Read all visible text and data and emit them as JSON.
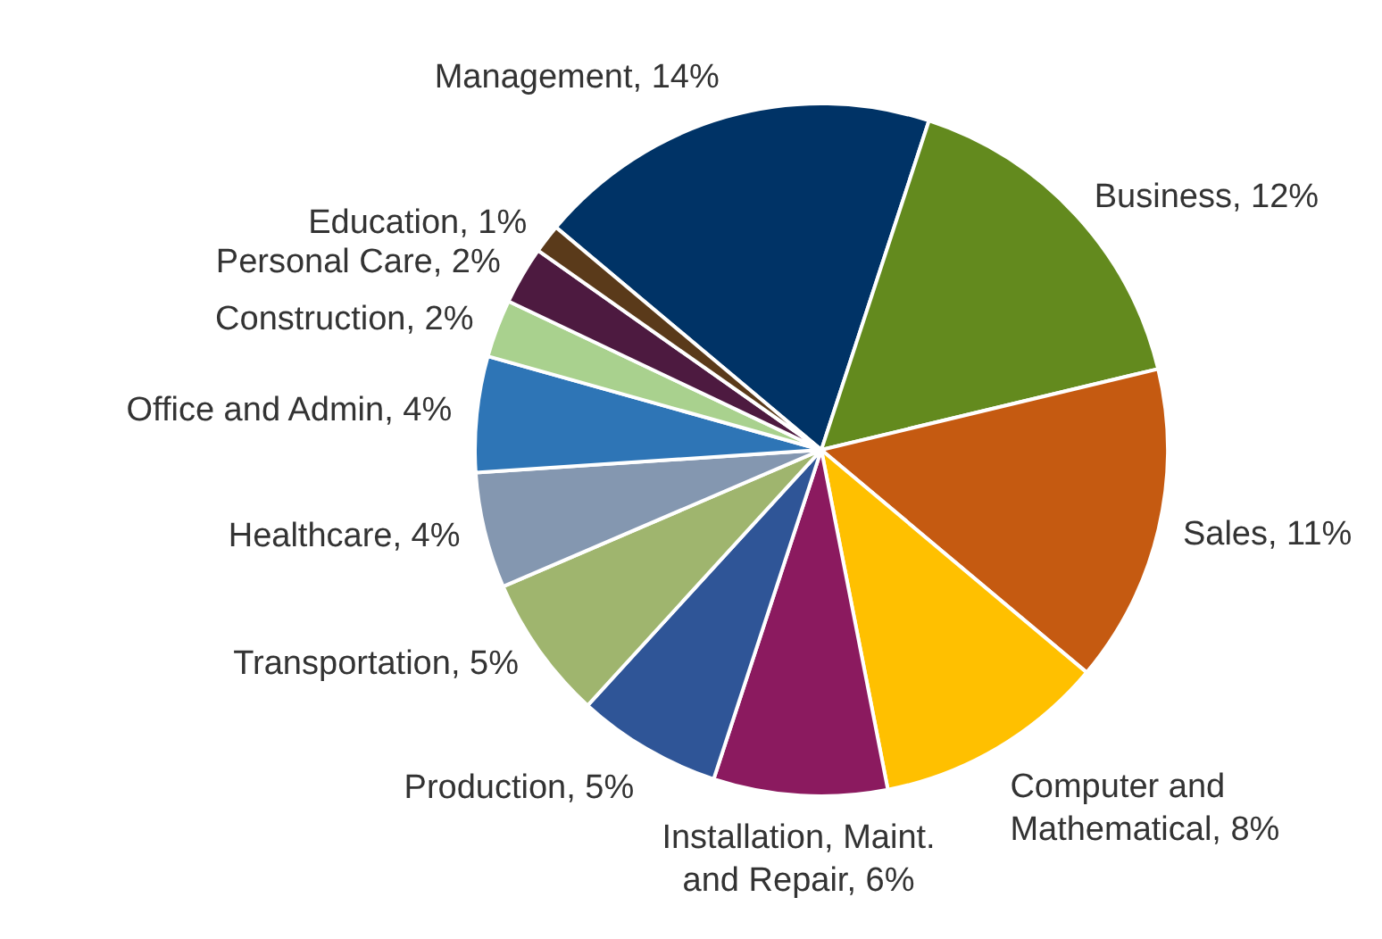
{
  "chart_data": {
    "type": "pie",
    "categories": [
      "Management",
      "Business",
      "Sales",
      "Computer and Mathematical",
      "Installation, Maint. and Repair",
      "Production",
      "Transportation",
      "Healthcare",
      "Office and Admin",
      "Construction",
      "Personal Care",
      "Education"
    ],
    "values": [
      14,
      12,
      11,
      8,
      6,
      5,
      5,
      4,
      4,
      2,
      2,
      1
    ],
    "value_labels": [
      "14%",
      "12%",
      "11%",
      "8%",
      "6%",
      "5%",
      "5%",
      "4%",
      "4%",
      "2%",
      "2%",
      "1%"
    ],
    "colors": [
      "#003366",
      "#638a1e",
      "#c55a11",
      "#ffc000",
      "#8b1a5f",
      "#2f5597",
      "#9fb56e",
      "#8497b0",
      "#2e75b6",
      "#a9d18e",
      "#4d1a40",
      "#5a3a1a"
    ],
    "legend": false
  }
}
